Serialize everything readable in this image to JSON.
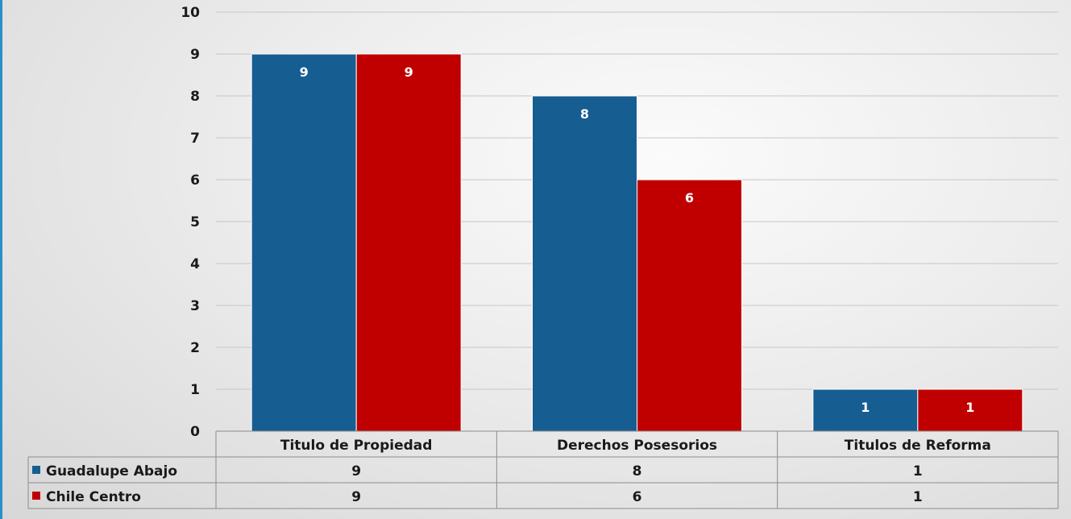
{
  "chart_data": {
    "type": "bar",
    "categories": [
      "Titulo de Propiedad",
      "Derechos Posesorios",
      "Titulos de Reforma"
    ],
    "series": [
      {
        "name": "Guadalupe Abajo",
        "color": "#165e92",
        "values": [
          9,
          8,
          1
        ]
      },
      {
        "name": "Chile Centro",
        "color": "#c00000",
        "values": [
          9,
          6,
          1
        ]
      }
    ],
    "ylim": [
      0,
      10
    ],
    "yticks": [
      0,
      1,
      2,
      3,
      4,
      5,
      6,
      7,
      8,
      9,
      10
    ],
    "grid": true,
    "data_table": true,
    "title": "",
    "xlabel": "",
    "ylabel": ""
  }
}
